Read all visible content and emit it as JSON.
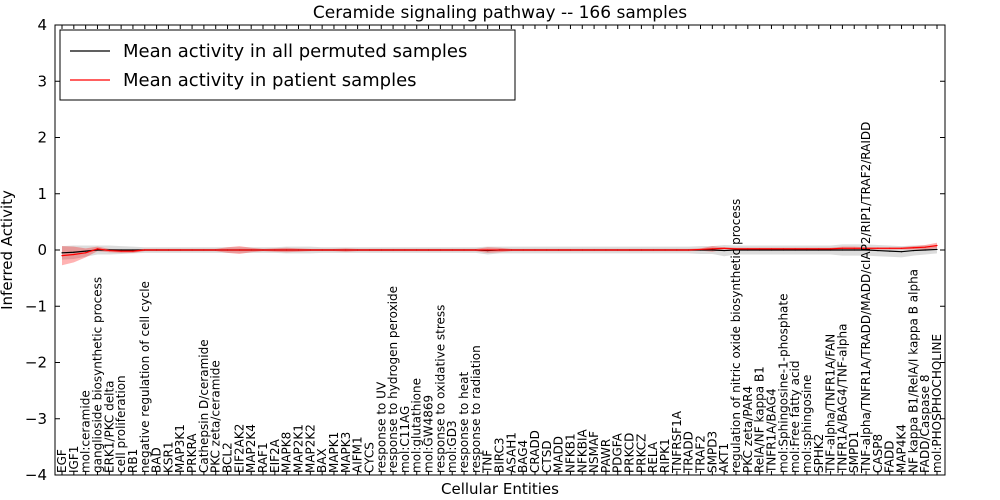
{
  "chart_data": {
    "type": "line",
    "title": "Ceramide signaling pathway -- 166 samples",
    "xlabel": "Cellular Entities",
    "ylabel": "Inferred Activity",
    "ylim": [
      -4,
      4
    ],
    "yticks": [
      -4,
      -3,
      -2,
      -1,
      0,
      1,
      2,
      3,
      4
    ],
    "ytick_labels": [
      "−4",
      "−3",
      "−2",
      "−1",
      "0",
      "1",
      "2",
      "3",
      "4"
    ],
    "legend_position": "top-left",
    "grid": false,
    "categories": [
      "EGF",
      "IGF1",
      "mol:ceramide",
      "ganglioside biosynthetic process",
      "ERK1/PKC delta",
      "cell proliferation",
      "RB1",
      "negative regulation of cell cycle",
      "BAD",
      "KSR1",
      "MAP3K1",
      "PRKRA",
      "Cathepsin D/ceramide",
      "PKC zeta/ceramide",
      "BCL2",
      "EIF2AK2",
      "MAP2K4",
      "RAF1",
      "EIF2A",
      "MAPK8",
      "MAP2K1",
      "MAP2K2",
      "BAX",
      "MAPK1",
      "MAPK3",
      "AIFM1",
      "CYCS",
      "response to UV",
      "response to hydrogen peroxide",
      "mol:C11AG",
      "mol:glutathione",
      "mol:GW4869",
      "response to oxidative stress",
      "mol:GD3",
      "response to heat",
      "response to radiation",
      "TNF",
      "BIRC3",
      "ASAH1",
      "BAG4",
      "CRADD",
      "CTSD",
      "MADD",
      "NFKB1",
      "NFKBIA",
      "NSMAF",
      "PAWR",
      "PDGFA",
      "PRKCD",
      "PRKCZ",
      "RELA",
      "RIPK1",
      "TNFRSF1A",
      "TRADD",
      "TRAF2",
      "SMPD3",
      "AKT1",
      "regulation of nitric oxide biosynthetic process",
      "PKC zeta/PAR4",
      "RelA/NF kappa B1",
      "TNFR1A/BAG4",
      "mol:Sphingosine-1-phosphate",
      "mol:Free fatty acid",
      "mol:sphingosine",
      "SPHK2",
      "TNF-alpha/TNFR1A/FAN",
      "TNFR1A/BAG4/TNF-alpha",
      "SMPD1",
      "TNF-alpha/TNFR1A/TRADD/MADD/cIAP2/RIP1/TRAF2/RAIDD",
      "CASP8",
      "FADD",
      "MAP4K4",
      "NF kappa B1/RelA/I kappa B alpha",
      "FADD/Caspase 8",
      "mol:PHOSPHOCHOLINE"
    ],
    "series": [
      {
        "name": "Mean activity in all permuted samples",
        "color": "#000000",
        "values": [
          -0.05,
          -0.04,
          -0.02,
          0,
          0,
          0,
          0,
          0,
          0,
          0,
          0,
          0,
          0,
          0,
          0,
          0,
          0,
          0,
          0,
          0,
          0,
          0,
          0,
          0,
          0,
          0,
          0,
          0,
          0,
          0,
          0,
          0,
          0,
          0,
          0,
          0,
          -0.01,
          0,
          0,
          0,
          0,
          0,
          0,
          0,
          0,
          0,
          0,
          0,
          0,
          0,
          0,
          0,
          0,
          0,
          0,
          0,
          -0.01,
          0,
          0,
          0,
          0,
          0,
          0,
          0,
          0,
          0,
          0,
          0,
          0,
          -0.01,
          -0.02,
          -0.03,
          -0.01,
          0,
          0.01
        ],
        "band": [
          0.12,
          0.12,
          0.1,
          0.08,
          0.08,
          0.07,
          0.06,
          0.05,
          0.05,
          0.05,
          0.05,
          0.05,
          0.05,
          0.05,
          0.05,
          0.05,
          0.05,
          0.05,
          0.05,
          0.06,
          0.06,
          0.06,
          0.05,
          0.05,
          0.05,
          0.05,
          0.05,
          0.05,
          0.05,
          0.05,
          0.05,
          0.05,
          0.05,
          0.05,
          0.05,
          0.05,
          0.07,
          0.06,
          0.06,
          0.06,
          0.06,
          0.06,
          0.06,
          0.06,
          0.06,
          0.06,
          0.06,
          0.06,
          0.06,
          0.06,
          0.06,
          0.06,
          0.06,
          0.06,
          0.07,
          0.07,
          0.1,
          0.08,
          0.08,
          0.08,
          0.08,
          0.08,
          0.08,
          0.08,
          0.08,
          0.08,
          0.1,
          0.1,
          0.1,
          0.1,
          0.1,
          0.1,
          0.09,
          0.08,
          0.07
        ],
        "band_color": "#bfbfbf"
      },
      {
        "name": "Mean activity in patient samples",
        "color": "#ff0000",
        "values": [
          -0.1,
          -0.08,
          -0.05,
          0.02,
          -0.01,
          -0.02,
          -0.02,
          0,
          0,
          0,
          0,
          0,
          0,
          0,
          0,
          0,
          0,
          0,
          0,
          0,
          0,
          0,
          0,
          0,
          0,
          0,
          0,
          0,
          0,
          0,
          0,
          0,
          0,
          0,
          0,
          0,
          0,
          0,
          0,
          0,
          0,
          0,
          0,
          0,
          0,
          0,
          0,
          0,
          0,
          0,
          0,
          0,
          0,
          0,
          0.01,
          0.02,
          0.03,
          0.02,
          0.02,
          0.02,
          0.02,
          0.02,
          0.02,
          0.02,
          0.02,
          0.02,
          0.03,
          0.03,
          0.03,
          0.03,
          0.03,
          0.03,
          0.04,
          0.05,
          0.08
        ],
        "band": [
          0.17,
          0.14,
          0.08,
          0.04,
          0.03,
          0.03,
          0.03,
          0.02,
          0.02,
          0.02,
          0.02,
          0.02,
          0.02,
          0.02,
          0.05,
          0.07,
          0.04,
          0.02,
          0.03,
          0.04,
          0.03,
          0.02,
          0.02,
          0.02,
          0.03,
          0.02,
          0.02,
          0.02,
          0.02,
          0.02,
          0.02,
          0.02,
          0.02,
          0.02,
          0.02,
          0.02,
          0.05,
          0.04,
          0.02,
          0.02,
          0.02,
          0.02,
          0.02,
          0.02,
          0.02,
          0.02,
          0.02,
          0.02,
          0.02,
          0.02,
          0.02,
          0.02,
          0.02,
          0.02,
          0.02,
          0.05,
          0.02,
          0.02,
          0.02,
          0.02,
          0.02,
          0.02,
          0.02,
          0.02,
          0.02,
          0.02,
          0.03,
          0.03,
          0.02,
          0.02,
          0.02,
          0.02,
          0.03,
          0.04,
          0.05
        ],
        "band_color": "#ff0000"
      }
    ]
  }
}
